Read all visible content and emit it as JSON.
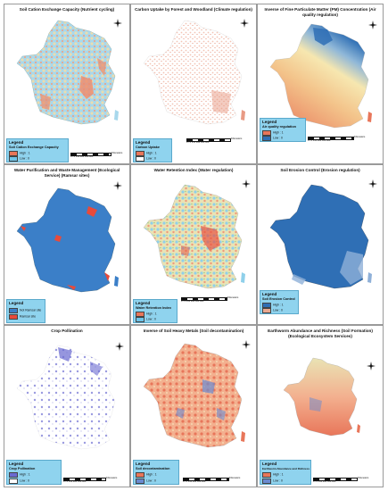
{
  "scale": {
    "ticks": [
      "0",
      "75",
      "150",
      "300",
      "450",
      "600"
    ],
    "unit": "Kilometers"
  },
  "legend_heading": "Legend",
  "panels": [
    {
      "id": "cec",
      "title": "Soil Cation Exchange Capacity (Nutrient cycling)",
      "legend_title": "Soil Cation Exchange Capacity",
      "items": [
        "High : 1",
        "Low : 0"
      ],
      "high_color": "#e8765a",
      "low_color": "#6ec4e8"
    },
    {
      "id": "carbon",
      "title": "Carbon Uptake by Forest and Woodland (Climate regulation)",
      "legend_title": "Carbon Uptake",
      "items": [
        "High : 1",
        "Low : 0"
      ],
      "high_color": "#e8765a",
      "low_color": "#ffffff"
    },
    {
      "id": "pm",
      "title": "Inverse of Fine Particulate Matter (PM) Concentration (Air quality regulation)",
      "legend_title": "Air quality regulation",
      "items": [
        "High : 1",
        "Low : 0"
      ],
      "high_color": "#e8765a",
      "low_color": "#2f6fb5"
    },
    {
      "id": "water",
      "title": "Water Purification and Waste Management (Ecological Service) (Ramsar sites)",
      "legend_title": "",
      "items": [
        "Not Ramsar site",
        "Ramsar site"
      ],
      "high_color": "#3b7fc8",
      "low_color": "#e84a3a"
    },
    {
      "id": "retention",
      "title": "Water Retention Index (Water regulation)",
      "legend_title": "Water Retention Index",
      "items": [
        "High : 1",
        "Low : 0"
      ],
      "high_color": "#e8765a",
      "low_color": "#6ec4e8"
    },
    {
      "id": "erosion",
      "title": "Soil Erosion Control (Erosion regulation)",
      "legend_title": "Soil Erosion Control",
      "items": [
        "High : 1",
        "Low : 0"
      ],
      "high_color": "#2f6fb5",
      "low_color": "#e8a890"
    },
    {
      "id": "pollination",
      "title": "Crop Pollination",
      "legend_title": "Crop Pollination",
      "items": [
        "High : 1",
        "Low : 0"
      ],
      "high_color": "#6a6ad0",
      "low_color": "#ffffff"
    },
    {
      "id": "metals",
      "title": "Inverse of Soil Heavy Metals (Soil decontamination)",
      "legend_title": "Soil decontamination",
      "items": [
        "High : 1",
        "Low : 0"
      ],
      "high_color": "#e8765a",
      "low_color": "#6a8ad0"
    },
    {
      "id": "earthworm",
      "title": "Earthworm Abundance and Richness (Soil Formation) (Ecological Ecosystem Services)",
      "legend_title": "Earthworm Abundance and Richness",
      "items": [
        "High : 1",
        "Low : 0"
      ],
      "high_color": "#e8765a",
      "low_color": "#6a8ad0"
    }
  ]
}
